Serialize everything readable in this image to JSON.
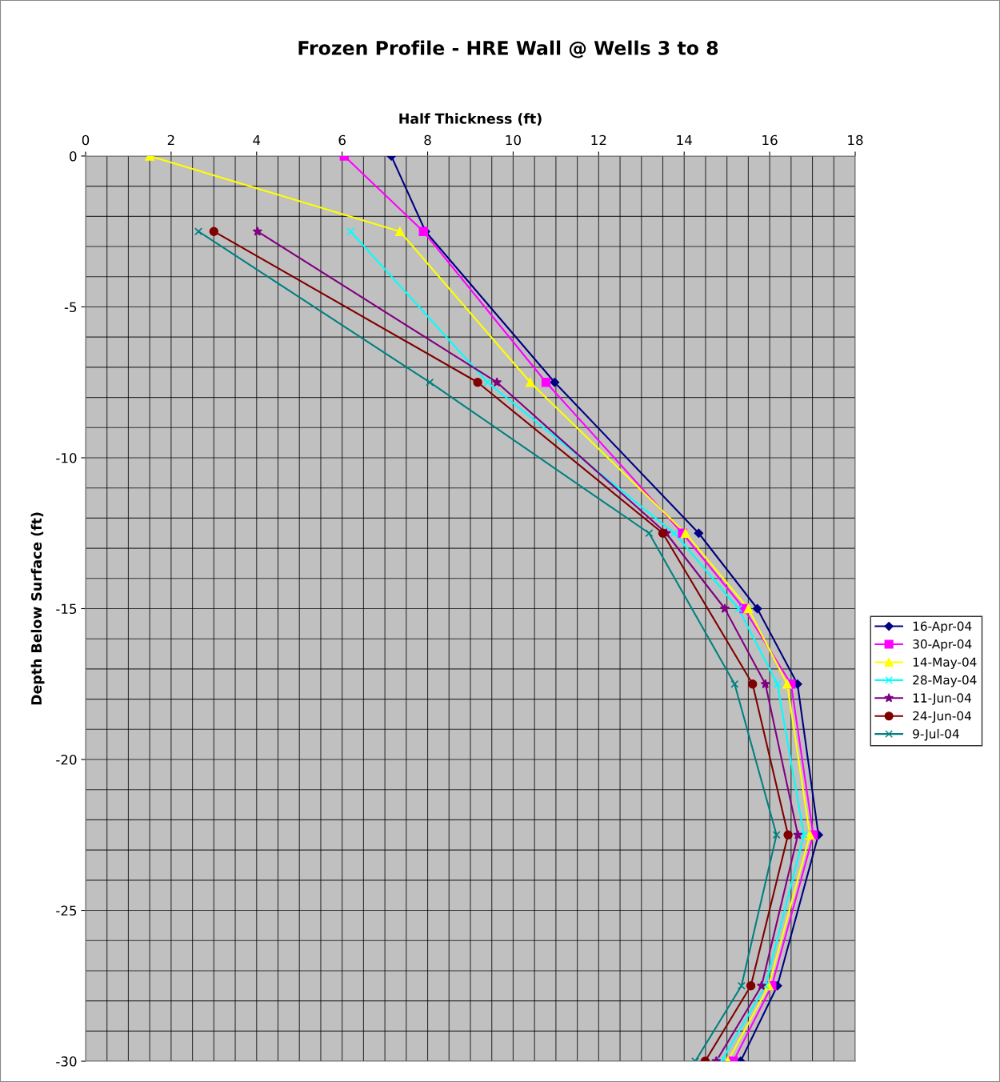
{
  "chart_data": {
    "type": "line",
    "title": "Frozen Profile - HRE Wall @ Wells 3 to 8",
    "xlabel": "Half Thickness (ft)",
    "ylabel": "Depth Below Surface (ft)",
    "xlim": [
      0,
      18
    ],
    "xticks": [
      0,
      2,
      4,
      6,
      8,
      10,
      12,
      14,
      16,
      18
    ],
    "ylim": [
      -30,
      0
    ],
    "yticks": [
      -30,
      -25,
      -20,
      -15,
      -10,
      -5,
      0
    ],
    "grid": true,
    "legend": "right",
    "series": [
      {
        "name": "16-Apr-04",
        "color": "#000080",
        "marker": "diamond",
        "x": [
          7.15,
          7.95,
          10.97,
          14.34,
          15.71,
          16.65,
          17.14,
          16.18,
          15.32
        ],
        "values": [
          0,
          -2.5,
          -7.5,
          -12.5,
          -15,
          -17.5,
          -22.5,
          -27.5,
          -30
        ]
      },
      {
        "name": "30-Apr-04",
        "color": "#ff00ff",
        "marker": "square",
        "x": [
          6.05,
          7.9,
          10.77,
          13.96,
          15.4,
          16.5,
          17.02,
          16.05,
          15.15
        ],
        "values": [
          0,
          -2.5,
          -7.5,
          -12.5,
          -15,
          -17.5,
          -22.5,
          -27.5,
          -30
        ]
      },
      {
        "name": "14-May-04",
        "color": "#ffff00",
        "marker": "triangle",
        "x": [
          1.5,
          7.35,
          10.4,
          14.03,
          15.5,
          16.41,
          16.94,
          15.98,
          15.02
        ],
        "values": [
          0,
          -2.5,
          -7.5,
          -12.5,
          -15,
          -17.5,
          -22.5,
          -27.5,
          -30
        ]
      },
      {
        "name": "28-May-04",
        "color": "#00ffff",
        "marker": "cross",
        "x": [
          6.2,
          9.4,
          13.77,
          15.27,
          16.18,
          16.8,
          15.9,
          14.87
        ],
        "values": [
          -2.5,
          -7.5,
          -12.5,
          -15,
          -17.5,
          -22.5,
          -27.5,
          -30
        ]
      },
      {
        "name": "11-Jun-04",
        "color": "#800080",
        "marker": "star",
        "x": [
          4.02,
          9.62,
          13.58,
          14.95,
          15.9,
          16.66,
          15.81,
          14.75
        ],
        "values": [
          -2.5,
          -7.5,
          -12.5,
          -15,
          -17.5,
          -22.5,
          -27.5,
          -30
        ]
      },
      {
        "name": "24-Jun-04",
        "color": "#800000",
        "marker": "circle",
        "x": [
          3.0,
          9.17,
          13.5,
          15.6,
          16.43,
          15.56,
          14.49
        ],
        "values": [
          -2.5,
          -7.5,
          -12.5,
          -17.5,
          -22.5,
          -27.5,
          -30
        ]
      },
      {
        "name": "9-Jul-04",
        "color": "#008080",
        "marker": "cross",
        "x": [
          2.64,
          8.05,
          13.18,
          15.18,
          16.16,
          15.34,
          14.26
        ],
        "values": [
          -2.5,
          -7.5,
          -12.5,
          -17.5,
          -22.5,
          -27.5,
          -30
        ]
      }
    ]
  }
}
